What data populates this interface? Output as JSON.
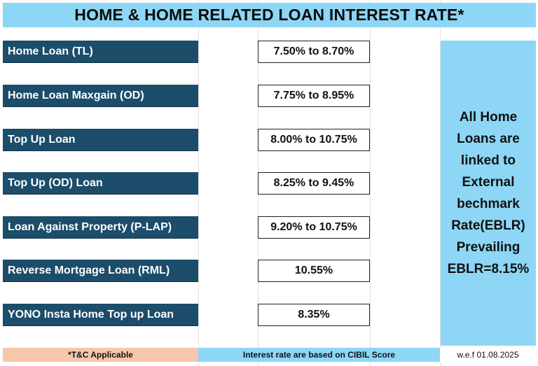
{
  "title": "HOME & HOME RELATED LOAN INTEREST RATE*",
  "loans": [
    {
      "label": "Home Loan (TL)",
      "rate": "7.50% to 8.70%"
    },
    {
      "label": "Home Loan  Maxgain (OD)",
      "rate": "7.75% to 8.95%"
    },
    {
      "label": "Top Up Loan",
      "rate": "8.00% to 10.75%"
    },
    {
      "label": "Top  Up (OD) Loan",
      "rate": "8.25% to 9.45%"
    },
    {
      "label": "Loan Against Property (P-LAP)",
      "rate": "9.20% to 10.75%"
    },
    {
      "label": "Reverse Mortgage Loan (RML)",
      "rate": "10.55%"
    },
    {
      "label": "YONO Insta Home Top up Loan",
      "rate": "8.35%"
    }
  ],
  "side_note": {
    "lines": [
      "All Home",
      "Loans are",
      "linked to",
      "External",
      "bechmark",
      "Rate(EBLR)",
      "Prevailing",
      "EBLR=8.15%"
    ]
  },
  "footer": {
    "tc": "*T&C Applicable",
    "cibil": "Interest rate are based on CIBIL Score",
    "wef": "w.e.f 01.08.2025"
  },
  "colors": {
    "title_bg": "#8ed6f5",
    "label_bg": "#1c4d6a",
    "tc_bg": "#f7c7ab"
  }
}
